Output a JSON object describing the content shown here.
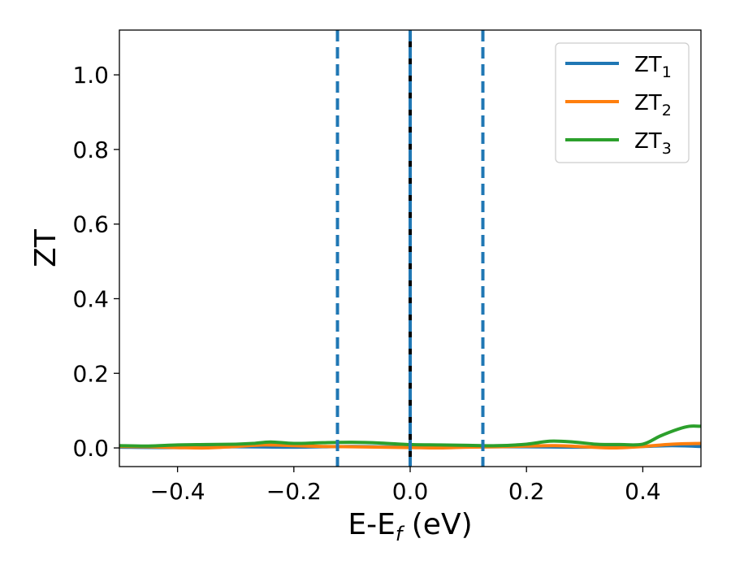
{
  "chart_data": {
    "type": "line",
    "xlabel_main": "E-E",
    "xlabel_sub": "f",
    "xlabel_unit": " (eV)",
    "ylabel": "ZT",
    "xlim": [
      -0.5,
      0.5
    ],
    "ylim": [
      -0.05,
      1.12
    ],
    "x_ticks": [
      -0.4,
      -0.2,
      0.0,
      0.2,
      0.4
    ],
    "x_tick_labels": [
      "−0.4",
      "−0.2",
      "0.0",
      "0.2",
      "0.4"
    ],
    "y_ticks": [
      0.0,
      0.2,
      0.4,
      0.6,
      0.8,
      1.0
    ],
    "y_tick_labels": [
      "0.0",
      "0.2",
      "0.4",
      "0.6",
      "0.8",
      "1.0"
    ],
    "grid": false,
    "legend_position": "top-right",
    "series": [
      {
        "name": "ZT",
        "name_sub": "1",
        "color": "#1f77b4",
        "x": [
          -0.5,
          -0.4,
          -0.3,
          -0.2,
          -0.1,
          0.0,
          0.1,
          0.2,
          0.3,
          0.4,
          0.45,
          0.5
        ],
        "y": [
          0.002,
          0.001,
          0.003,
          0.002,
          0.004,
          0.002,
          0.003,
          0.003,
          0.002,
          0.004,
          0.006,
          0.004
        ]
      },
      {
        "name": "ZT",
        "name_sub": "2",
        "color": "#ff7f0e",
        "x": [
          -0.5,
          -0.45,
          -0.4,
          -0.35,
          -0.3,
          -0.25,
          -0.2,
          -0.15,
          -0.1,
          -0.05,
          0.0,
          0.05,
          0.1,
          0.15,
          0.2,
          0.25,
          0.3,
          0.35,
          0.4,
          0.45,
          0.5
        ],
        "y": [
          0.004,
          0.003,
          0.001,
          0.0,
          0.004,
          0.008,
          0.006,
          0.004,
          0.003,
          0.002,
          0.001,
          0.0,
          0.002,
          0.003,
          0.005,
          0.006,
          0.003,
          0.0,
          0.004,
          0.01,
          0.012
        ]
      },
      {
        "name": "ZT",
        "name_sub": "3",
        "color": "#2ca02c",
        "x": [
          -0.5,
          -0.45,
          -0.4,
          -0.35,
          -0.3,
          -0.27,
          -0.24,
          -0.2,
          -0.15,
          -0.1,
          -0.05,
          0.0,
          0.05,
          0.1,
          0.15,
          0.2,
          0.24,
          0.28,
          0.32,
          0.36,
          0.4,
          0.43,
          0.46,
          0.48,
          0.5
        ],
        "y": [
          0.006,
          0.005,
          0.008,
          0.009,
          0.01,
          0.012,
          0.016,
          0.012,
          0.014,
          0.015,
          0.013,
          0.009,
          0.008,
          0.007,
          0.006,
          0.01,
          0.018,
          0.016,
          0.01,
          0.009,
          0.01,
          0.032,
          0.05,
          0.058,
          0.058
        ]
      }
    ],
    "vlines": [
      {
        "x": 0.0,
        "color": "#000000",
        "style": "solid"
      },
      {
        "x": -0.125,
        "color": "#1f77b4",
        "style": "dashed"
      },
      {
        "x": 0.0,
        "color": "#1f77b4",
        "style": "dashed"
      },
      {
        "x": 0.125,
        "color": "#1f77b4",
        "style": "dashed"
      }
    ]
  }
}
